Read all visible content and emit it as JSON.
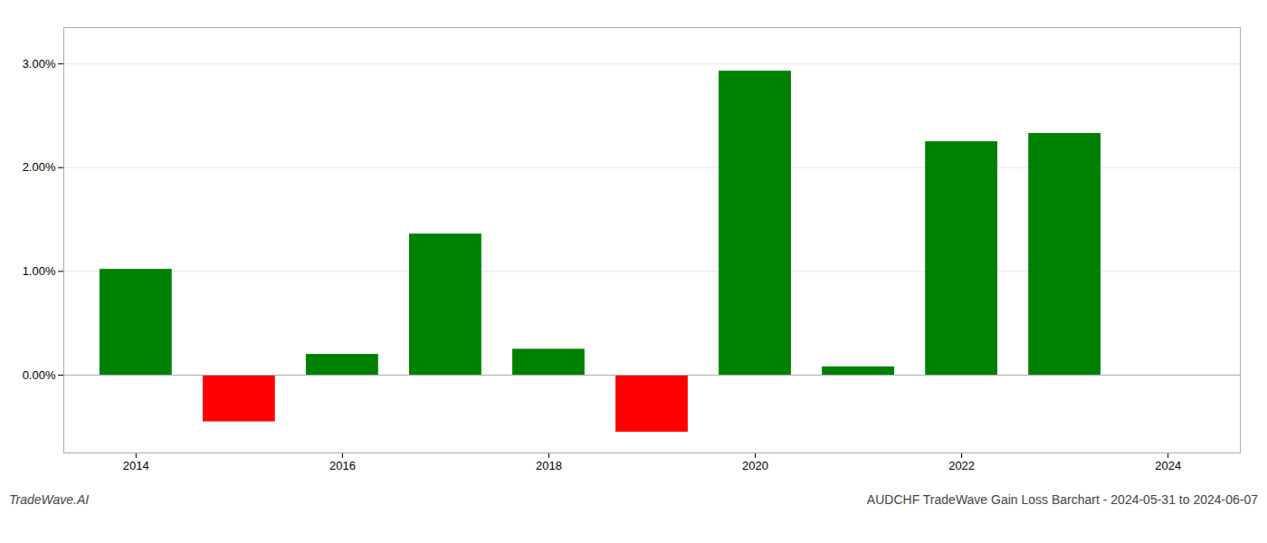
{
  "chart_data": {
    "type": "bar",
    "title": "AUDCHF TradeWave Gain Loss Barchart - 2024-05-31 to 2024-06-07",
    "annotations": [
      "TradeWave.AI"
    ],
    "x": [
      2014,
      2015,
      2016,
      2017,
      2018,
      2019,
      2020,
      2021,
      2022,
      2023
    ],
    "values": [
      1.02,
      -0.45,
      0.2,
      1.36,
      0.25,
      -0.55,
      2.93,
      0.08,
      2.25,
      2.33
    ],
    "colors": [
      "#008000",
      "#ff0000",
      "#008000",
      "#008000",
      "#008000",
      "#ff0000",
      "#008000",
      "#008000",
      "#008000",
      "#008000"
    ],
    "xlim": [
      2013.3,
      2024.7
    ],
    "xticks": [
      2014,
      2016,
      2018,
      2020,
      2022,
      2024
    ],
    "ylim": [
      -0.75,
      3.35
    ],
    "yticks": [
      {
        "value": 0,
        "label": "0.00%"
      },
      {
        "value": 1,
        "label": "1.00%"
      },
      {
        "value": 2,
        "label": "2.00%"
      },
      {
        "value": 3,
        "label": "3.00%"
      }
    ],
    "grid": true
  }
}
